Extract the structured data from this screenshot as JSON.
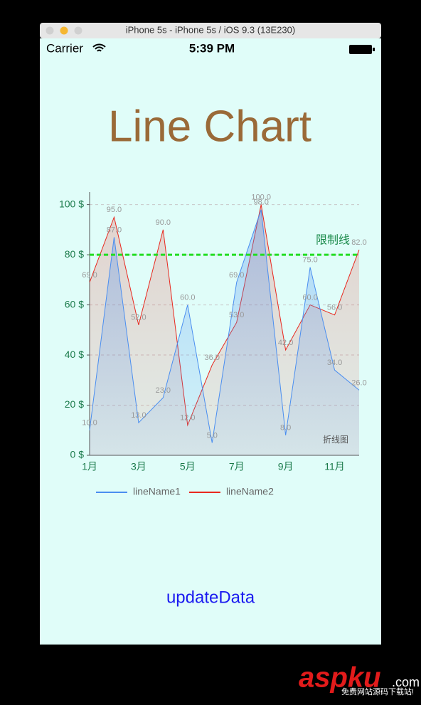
{
  "window": {
    "title": "iPhone 5s - iPhone 5s / iOS 9.3 (13E230)"
  },
  "status_bar": {
    "carrier": "Carrier",
    "time": "5:39 PM"
  },
  "button": {
    "label": "updateData"
  },
  "watermark": {
    "brand": "aspku",
    "domain": ".com",
    "tagline": "免费网站源码下载站!"
  },
  "chart_data": {
    "type": "line",
    "title": "Line Chart",
    "description": "折线图",
    "categories": [
      "1月",
      null,
      "3月",
      null,
      "5月",
      null,
      "7月",
      null,
      "9月",
      null,
      "11月",
      null
    ],
    "series": [
      {
        "name": "lineName1",
        "color": "#4a8ef0",
        "values": [
          10,
          87,
          13,
          23,
          60,
          5,
          69,
          98,
          8,
          75,
          34,
          26
        ],
        "value_labels": [
          "10.0",
          "87.0",
          "13.0",
          "23.0",
          "60.0",
          "5.0",
          "69.0",
          "98.0",
          "8.0",
          "75.0",
          "34.0",
          "26.0"
        ]
      },
      {
        "name": "lineName2",
        "color": "#e8281e",
        "values": [
          69,
          95,
          52,
          90,
          12,
          36,
          53,
          100,
          42,
          60,
          56,
          82
        ],
        "value_labels": [
          "69.0",
          "95.0",
          "52.0",
          "90.0",
          "12.0",
          "36.0",
          "53.0",
          "100.0",
          "42.0",
          "60.0",
          "56.0",
          "82.0"
        ]
      }
    ],
    "ylim": [
      0,
      105
    ],
    "yticks": [
      {
        "value": 0,
        "label": "0 $"
      },
      {
        "value": 20,
        "label": "20 $"
      },
      {
        "value": 40,
        "label": "40 $"
      },
      {
        "value": 60,
        "label": "60 $"
      },
      {
        "value": 80,
        "label": "80 $"
      },
      {
        "value": 100,
        "label": "100 $"
      }
    ],
    "grid": true,
    "limit_line": {
      "value": 80,
      "label": "限制线",
      "color": "#22dd22"
    },
    "legend": "bottom-left"
  }
}
